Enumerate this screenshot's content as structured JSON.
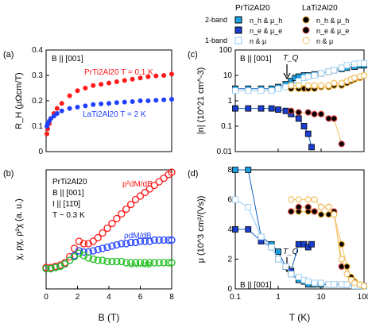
{
  "legend": {
    "headers": [
      "PrTi2Al20",
      "LaTi2Al20"
    ],
    "rows": [
      {
        "method": "2-band",
        "pr": "n_h & μ_h",
        "la": "n_h & μ_h"
      },
      {
        "method": "",
        "pr": "n_e & μ_e",
        "la": "n_e & μ_e"
      },
      {
        "method": "1-band",
        "pr": "n & μ",
        "la": "n & μ"
      }
    ]
  },
  "colors": {
    "pr_hole": "#1aa0e0",
    "pr_elec": "#1a3fd0",
    "pr_one": "#90c8f0",
    "la_hole": "#e0a020",
    "la_elec": "#d04040",
    "la_one": "#f0c060",
    "red": "#ff1a1a",
    "blue": "#2040ff",
    "green": "#20c020"
  },
  "chart_data": [
    {
      "panel": "(a)",
      "type": "scatter",
      "annotations": [
        "B || [001]"
      ],
      "xlabel": "",
      "ylabel": "R_H (μΩcm/T)",
      "xlim": [
        0,
        8
      ],
      "ylim": [
        0,
        0.4
      ],
      "yticks": [
        0,
        0.1,
        0.2,
        0.3,
        0.4
      ],
      "series": [
        {
          "name": "PrTi2Al20 T = 0.1 K",
          "color": "red",
          "x": [
            0.05,
            0.1,
            0.2,
            0.3,
            0.5,
            0.7,
            1,
            1.5,
            2,
            2.5,
            3,
            3.5,
            4,
            4.5,
            5,
            5.5,
            6,
            6.5,
            7,
            7.5,
            8
          ],
          "y": [
            0.07,
            0.09,
            0.11,
            0.13,
            0.15,
            0.17,
            0.19,
            0.22,
            0.24,
            0.25,
            0.26,
            0.265,
            0.27,
            0.275,
            0.28,
            0.285,
            0.29,
            0.295,
            0.298,
            0.3,
            0.305
          ]
        },
        {
          "name": "LaTi2Al20 T = 2 K",
          "color": "blue",
          "x": [
            0.05,
            0.1,
            0.2,
            0.3,
            0.5,
            0.7,
            1,
            1.5,
            2,
            2.5,
            3,
            3.5,
            4,
            4.5,
            5,
            5.5,
            6,
            6.5,
            7,
            7.5,
            8
          ],
          "y": [
            0.1,
            0.11,
            0.12,
            0.13,
            0.14,
            0.15,
            0.16,
            0.17,
            0.175,
            0.18,
            0.185,
            0.188,
            0.19,
            0.193,
            0.195,
            0.197,
            0.2,
            0.2,
            0.202,
            0.204,
            0.206
          ]
        }
      ]
    },
    {
      "panel": "(b)",
      "type": "scatter",
      "annotations": [
        "PrTi2Al20",
        "B || [001]",
        "I || [11̄0]",
        "T ~ 0.3 K"
      ],
      "xlabel": "B (T)",
      "ylabel": "χ, ρχ, ρ²χ (a. u.)",
      "xlim": [
        0,
        8
      ],
      "ylim": [
        0,
        1
      ],
      "xticks": [
        0,
        2,
        4,
        6,
        8
      ],
      "series": [
        {
          "name": "p²dM/dB",
          "color": "red",
          "x": [
            0,
            0.3,
            0.6,
            0.9,
            1.2,
            1.5,
            1.8,
            2.1,
            2.4,
            2.7,
            3,
            3.3,
            3.6,
            3.9,
            4.2,
            4.5,
            4.8,
            5.1,
            5.4,
            5.7,
            6,
            6.3,
            6.6,
            6.9,
            7.2,
            7.5,
            7.8,
            8
          ],
          "y": [
            0.18,
            0.18,
            0.19,
            0.2,
            0.22,
            0.27,
            0.34,
            0.4,
            0.38,
            0.38,
            0.4,
            0.43,
            0.47,
            0.51,
            0.55,
            0.59,
            0.63,
            0.67,
            0.71,
            0.75,
            0.78,
            0.81,
            0.84,
            0.87,
            0.9,
            0.93,
            0.96,
            0.98
          ]
        },
        {
          "name": "ρdM/dB",
          "color": "blue",
          "x": [
            0,
            0.3,
            0.6,
            0.9,
            1.2,
            1.5,
            1.8,
            2.1,
            2.4,
            2.7,
            3,
            3.3,
            3.6,
            3.9,
            4.2,
            4.5,
            4.8,
            5.1,
            5.4,
            5.7,
            6,
            6.3,
            6.6,
            6.9,
            7.2,
            7.5,
            7.8,
            8
          ],
          "y": [
            0.17,
            0.17,
            0.18,
            0.19,
            0.21,
            0.24,
            0.28,
            0.32,
            0.31,
            0.31,
            0.32,
            0.33,
            0.34,
            0.35,
            0.36,
            0.37,
            0.38,
            0.38,
            0.39,
            0.39,
            0.4,
            0.4,
            0.4,
            0.41,
            0.41,
            0.41,
            0.41,
            0.41
          ]
        },
        {
          "name": "dM/dB",
          "color": "green",
          "x": [
            0,
            0.3,
            0.6,
            0.9,
            1.2,
            1.5,
            1.8,
            2.1,
            2.4,
            2.7,
            3,
            3.3,
            3.6,
            3.9,
            4.2,
            4.5,
            4.8,
            5.1,
            5.4,
            5.7,
            6,
            6.3,
            6.6,
            6.9,
            7.2,
            7.5,
            7.8,
            8
          ],
          "y": [
            0.17,
            0.17,
            0.18,
            0.19,
            0.21,
            0.24,
            0.27,
            0.3,
            0.28,
            0.26,
            0.25,
            0.24,
            0.24,
            0.23,
            0.23,
            0.23,
            0.23,
            0.22,
            0.22,
            0.22,
            0.22,
            0.22,
            0.22,
            0.22,
            0.22,
            0.22,
            0.22,
            0.22
          ]
        }
      ]
    },
    {
      "panel": "(c)",
      "type": "scatter",
      "annotations": [
        "B || [001]",
        "T_Q"
      ],
      "xlabel": "",
      "ylabel": "|n| (10^21 cm^-3)",
      "xscale": "log",
      "yscale": "log",
      "xlim": [
        0.1,
        100
      ],
      "ylim": [
        0.01,
        100
      ],
      "yticks": [
        "0.01",
        "0.1",
        "1",
        "10",
        "100"
      ],
      "series": [
        {
          "name": "PrTi2Al20 n_h",
          "style": "pr_hole",
          "x": [
            0.1,
            0.2,
            0.4,
            0.7,
            1,
            1.5,
            2,
            2.5,
            3,
            4,
            5,
            7,
            10,
            15,
            20,
            30,
            40,
            60,
            80,
            100
          ],
          "y": [
            3,
            3,
            3,
            3,
            3.5,
            4.5,
            6,
            8,
            9,
            10,
            10,
            11,
            12,
            14,
            16,
            18,
            20,
            22,
            25,
            25
          ]
        },
        {
          "name": "PrTi2Al20 n_e",
          "style": "pr_elec",
          "x": [
            0.1,
            0.2,
            0.4,
            0.7,
            1,
            1.5,
            2,
            3,
            4,
            5,
            6
          ],
          "y": [
            0.5,
            0.5,
            0.5,
            0.5,
            0.45,
            0.4,
            0.3,
            0.2,
            0.1,
            0.05,
            0.015
          ]
        },
        {
          "name": "PrTi2Al20 n",
          "style": "pr_one",
          "x": [
            0.1,
            0.2,
            0.4,
            0.7,
            1,
            1.5,
            2,
            3,
            4,
            5,
            7,
            10,
            15,
            20,
            30,
            40,
            60,
            80,
            100
          ],
          "y": [
            2.5,
            2.5,
            2.5,
            2.5,
            3,
            3.5,
            4,
            6,
            8,
            9,
            10,
            12,
            14,
            16,
            20,
            25,
            28,
            30,
            30
          ]
        },
        {
          "name": "LaTi2Al20 n_h",
          "style": "la_hole",
          "x": [
            2,
            3,
            4,
            5,
            7,
            10,
            15,
            20,
            30,
            40,
            50,
            60,
            80,
            100
          ],
          "y": [
            3,
            3,
            3,
            3,
            3,
            3.5,
            3.5,
            4,
            4,
            5,
            6,
            7,
            8,
            10
          ]
        },
        {
          "name": "LaTi2Al20 n_e",
          "style": "la_elec",
          "x": [
            2,
            3,
            5,
            7,
            10,
            15,
            20,
            30
          ],
          "y": [
            0.4,
            0.35,
            0.35,
            0.3,
            0.3,
            0.2,
            0.2,
            0.02
          ]
        },
        {
          "name": "LaTi2Al20 n",
          "style": "la_one",
          "x": [
            2,
            3,
            5,
            7,
            10,
            15,
            20,
            30,
            40,
            50,
            60,
            80,
            100
          ],
          "y": [
            4,
            4,
            4,
            4,
            4,
            4,
            5,
            5,
            6,
            7,
            8,
            9,
            10
          ]
        }
      ]
    },
    {
      "panel": "(d)",
      "type": "scatter",
      "annotations": [
        "B || [001]",
        "T_Q"
      ],
      "xlabel": "T (K)",
      "ylabel": "μ (10^3 cm²/(Vs))",
      "xscale": "log",
      "xlim": [
        0.1,
        100
      ],
      "ylim": [
        0,
        8
      ],
      "yticks": [
        0,
        2,
        4,
        6,
        8
      ],
      "xticks": [
        "0.1",
        "1",
        "10",
        "100"
      ],
      "series": [
        {
          "name": "PrTi2Al20 μ_h",
          "style": "pr_hole",
          "x": [
            0.1,
            0.2,
            0.4,
            0.7,
            1,
            1.5,
            2,
            3,
            4,
            5,
            7,
            10,
            15,
            20,
            30,
            40,
            60,
            80,
            100
          ],
          "y": [
            8,
            8,
            3.5,
            3,
            2.5,
            1.5,
            1,
            0.6,
            0.5,
            0.3,
            0.3,
            0.3,
            0.3,
            0.3,
            0.3,
            0.3,
            0.2,
            0.2,
            0.2
          ]
        },
        {
          "name": "PrTi2Al20 μ_e",
          "style": "pr_elec",
          "x": [
            0.1,
            0.2,
            0.4,
            0.7,
            1,
            1.5,
            2,
            3,
            4,
            5,
            6
          ],
          "y": [
            4,
            4,
            3.2,
            2.8,
            2,
            1.5,
            1.2,
            3,
            3,
            2.8,
            3
          ]
        },
        {
          "name": "PrTi2Al20 μ",
          "style": "pr_one",
          "x": [
            0.1,
            0.2,
            0.4,
            0.7,
            1,
            1.5,
            2,
            3,
            4,
            5,
            7,
            10,
            15,
            20,
            30,
            40,
            60,
            80,
            100
          ],
          "y": [
            6,
            5.5,
            3.5,
            2.8,
            2,
            1.5,
            1,
            0.8,
            0.6,
            0.5,
            0.4,
            0.4,
            0.3,
            0.3,
            0.3,
            0.3,
            0.2,
            0.2,
            0.2
          ]
        },
        {
          "name": "LaTi2Al20 μ_h",
          "style": "la_hole",
          "x": [
            2,
            3,
            5,
            7,
            10,
            15,
            20,
            30,
            40,
            50,
            60,
            80,
            100
          ],
          "y": [
            5.2,
            5.2,
            5.2,
            5.2,
            5,
            5,
            5,
            3,
            1.5,
            0.8,
            0.5,
            0.3,
            0.2
          ]
        },
        {
          "name": "LaTi2Al20 μ_e",
          "style": "la_elec",
          "x": [
            2,
            3,
            5,
            7,
            10,
            15,
            20,
            30
          ],
          "y": [
            5.2,
            5.5,
            5.5,
            5.2,
            5.5,
            5.5,
            5.2,
            1.5
          ]
        },
        {
          "name": "LaTi2Al20 μ",
          "style": "la_one",
          "x": [
            2,
            3,
            5,
            7,
            10,
            15,
            20,
            30,
            40,
            50,
            60,
            80,
            100
          ],
          "y": [
            6,
            6,
            6,
            6,
            5.5,
            5.5,
            5,
            2,
            1,
            0.6,
            0.4,
            0.3,
            0.2
          ]
        }
      ]
    }
  ]
}
